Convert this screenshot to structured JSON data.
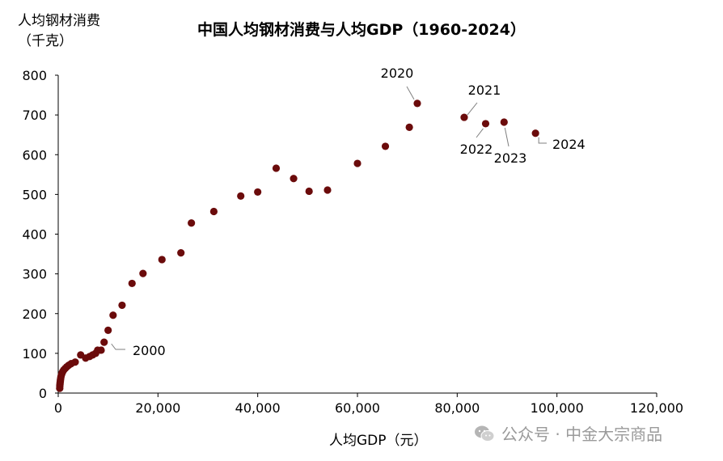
{
  "chart_data": {
    "type": "scatter",
    "title": "中国人均钢材消费与人均GDP（1960-2024）",
    "ylabel": "人均钢材消费",
    "ylabel_unit": "（千克）",
    "xlabel": "人均GDP（元）",
    "xlim": [
      0,
      120000
    ],
    "ylim": [
      0,
      800
    ],
    "xticks": [
      0,
      20000,
      40000,
      60000,
      80000,
      100000,
      120000
    ],
    "xtick_labels": [
      "0",
      "20,000",
      "40,000",
      "60,000",
      "80,000",
      "100,000",
      "120,000"
    ],
    "yticks": [
      0,
      100,
      200,
      300,
      400,
      500,
      600,
      700,
      800
    ],
    "ytick_labels": [
      "0",
      "100",
      "200",
      "300",
      "400",
      "500",
      "600",
      "700",
      "800"
    ],
    "marker_color": "#6b0b0b",
    "points": [
      {
        "x": 300,
        "y": 12
      },
      {
        "x": 320,
        "y": 18
      },
      {
        "x": 350,
        "y": 22
      },
      {
        "x": 380,
        "y": 26
      },
      {
        "x": 420,
        "y": 30
      },
      {
        "x": 460,
        "y": 34
      },
      {
        "x": 500,
        "y": 38
      },
      {
        "x": 560,
        "y": 42
      },
      {
        "x": 650,
        "y": 46
      },
      {
        "x": 750,
        "y": 50
      },
      {
        "x": 900,
        "y": 54
      },
      {
        "x": 1100,
        "y": 58
      },
      {
        "x": 1400,
        "y": 62
      },
      {
        "x": 1700,
        "y": 66
      },
      {
        "x": 2100,
        "y": 70
      },
      {
        "x": 2600,
        "y": 74
      },
      {
        "x": 3400,
        "y": 78
      },
      {
        "x": 4500,
        "y": 96
      },
      {
        "x": 5500,
        "y": 88
      },
      {
        "x": 6300,
        "y": 92
      },
      {
        "x": 6900,
        "y": 96
      },
      {
        "x": 7500,
        "y": 100
      },
      {
        "x": 7900,
        "y": 108
      },
      {
        "x": 8600,
        "y": 108
      },
      {
        "x": 9200,
        "y": 128
      },
      {
        "x": 10000,
        "y": 158
      },
      {
        "x": 11000,
        "y": 196
      },
      {
        "x": 12800,
        "y": 221
      },
      {
        "x": 14800,
        "y": 276
      },
      {
        "x": 17000,
        "y": 301
      },
      {
        "x": 20800,
        "y": 336
      },
      {
        "x": 24600,
        "y": 353
      },
      {
        "x": 26700,
        "y": 428
      },
      {
        "x": 31200,
        "y": 457
      },
      {
        "x": 36600,
        "y": 496
      },
      {
        "x": 40000,
        "y": 506
      },
      {
        "x": 43700,
        "y": 566
      },
      {
        "x": 47200,
        "y": 540
      },
      {
        "x": 50300,
        "y": 508
      },
      {
        "x": 54000,
        "y": 511
      },
      {
        "x": 60000,
        "y": 578
      },
      {
        "x": 65600,
        "y": 621
      },
      {
        "x": 70400,
        "y": 669
      },
      {
        "x": 72000,
        "y": 729
      },
      {
        "x": 81400,
        "y": 694
      },
      {
        "x": 85700,
        "y": 678
      },
      {
        "x": 89400,
        "y": 682
      },
      {
        "x": 95700,
        "y": 654
      }
    ],
    "annotations": [
      {
        "label": "2000",
        "x": 9200,
        "y": 128
      },
      {
        "label": "2020",
        "x": 72000,
        "y": 729
      },
      {
        "label": "2021",
        "x": 81400,
        "y": 694
      },
      {
        "label": "2022",
        "x": 85700,
        "y": 678
      },
      {
        "label": "2023",
        "x": 89400,
        "y": 682
      },
      {
        "label": "2024",
        "x": 95700,
        "y": 654
      }
    ]
  },
  "watermark": {
    "text": "公众号 · 中金大宗商品",
    "icon": "wechat-icon"
  }
}
